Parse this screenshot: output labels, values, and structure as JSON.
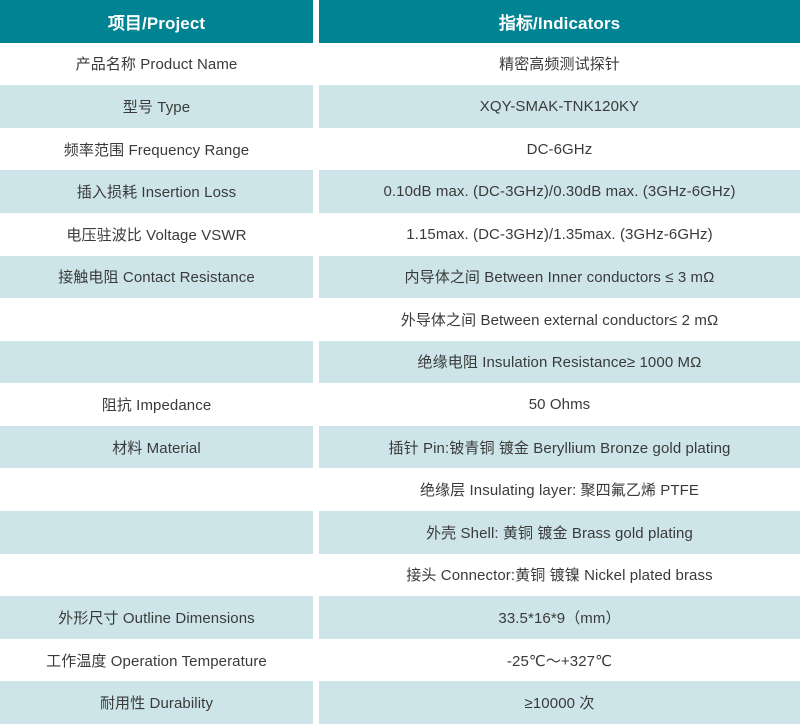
{
  "theme": {
    "header_bg": "#008493",
    "header_text": "#ffffff",
    "row_bg": "#ffffff",
    "row_alt_bg": "#cde5e9",
    "text": "#3a3a3a"
  },
  "table": {
    "header": {
      "project": "项目/Project",
      "indicators": "指标/Indicators"
    },
    "rows": [
      {
        "project": "产品名称 Product Name",
        "indicator": "精密高频测试探针"
      },
      {
        "project": "型号 Type",
        "indicator": "XQY-SMAK-TNK120KY"
      },
      {
        "project": "频率范围 Frequency Range",
        "indicator": "DC-6GHz"
      },
      {
        "project": "插入损耗 Insertion Loss",
        "indicator": "0.10dB max. (DC-3GHz)/0.30dB max. (3GHz-6GHz)"
      },
      {
        "project": "电压驻波比 Voltage VSWR",
        "indicator": "1.15max. (DC-3GHz)/1.35max. (3GHz-6GHz)"
      },
      {
        "project": "接触电阻 Contact Resistance",
        "indicator": "内导体之间 Between Inner conductors ≤ 3 mΩ"
      },
      {
        "project": "",
        "indicator": "外导体之间 Between external conductor≤ 2 mΩ"
      },
      {
        "project": "",
        "indicator": "绝缘电阻 Insulation Resistance≥ 1000 MΩ"
      },
      {
        "project": "阻抗 Impedance",
        "indicator": "50 Ohms"
      },
      {
        "project": "材料 Material",
        "indicator": "插针 Pin:铍青铜 镀金 Beryllium Bronze gold plating"
      },
      {
        "project": "",
        "indicator": "绝缘层 Insulating layer: 聚四氟乙烯 PTFE"
      },
      {
        "project": "",
        "indicator": "外壳 Shell: 黄铜 镀金 Brass gold plating"
      },
      {
        "project": "",
        "indicator": "接头 Connector:黄铜 镀镍 Nickel plated brass"
      },
      {
        "project": "外形尺寸 Outline Dimensions",
        "indicator": "33.5*16*9（mm）"
      },
      {
        "project": "工作温度 Operation Temperature",
        "indicator": "-25℃～+327℃"
      },
      {
        "project": "耐用性 Durability",
        "indicator": "≥10000 次"
      }
    ]
  }
}
